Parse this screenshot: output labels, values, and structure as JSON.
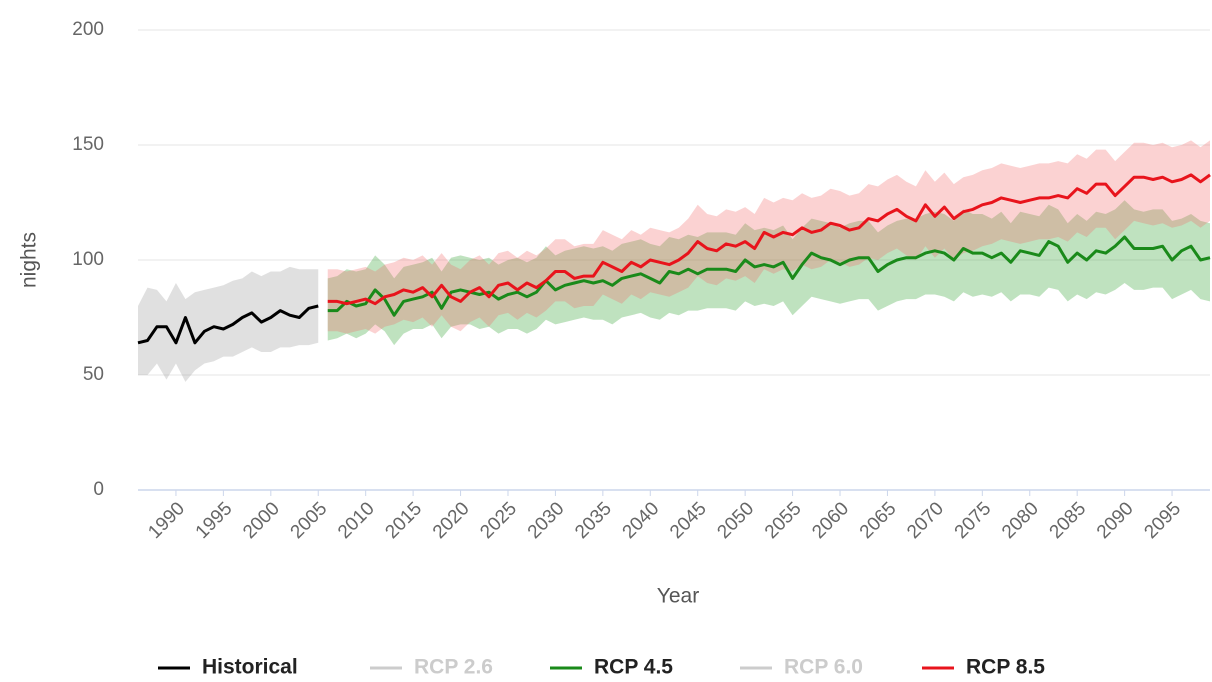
{
  "chart_data": {
    "type": "line",
    "y_label": "nights",
    "x_label": "Year",
    "xlim": [
      1986,
      2099
    ],
    "xticks": [
      1990,
      1995,
      2000,
      2005,
      2010,
      2015,
      2020,
      2025,
      2030,
      2035,
      2040,
      2045,
      2050,
      2055,
      2060,
      2065,
      2070,
      2075,
      2080,
      2085,
      2090,
      2095
    ],
    "ylim": [
      0,
      200
    ],
    "yticks": [
      0,
      50,
      100,
      150,
      200
    ],
    "grid": true,
    "series": [
      {
        "name": "Historical",
        "color": "#000000",
        "band_color": "#999999",
        "visible": true,
        "x": [
          1986,
          1987,
          1988,
          1989,
          1990,
          1991,
          1992,
          1993,
          1994,
          1995,
          1996,
          1997,
          1998,
          1999,
          2000,
          2001,
          2002,
          2003,
          2004,
          2005
        ],
        "values": [
          64,
          65,
          71,
          71,
          64,
          75,
          64,
          69,
          71,
          70,
          72,
          75,
          77,
          73,
          75,
          78,
          76,
          75,
          79,
          80
        ],
        "lower": [
          50,
          50,
          55,
          48,
          55,
          47,
          52,
          55,
          56,
          58,
          58,
          60,
          62,
          60,
          60,
          62,
          62,
          63,
          63,
          64
        ],
        "upper": [
          80,
          88,
          87,
          82,
          90,
          83,
          86,
          87,
          88,
          89,
          91,
          92,
          95,
          93,
          95,
          95,
          97,
          96,
          96,
          96
        ]
      },
      {
        "name": "RCP 2.6",
        "color": "#cccccc",
        "visible": false
      },
      {
        "name": "RCP 4.5",
        "color": "#1a8a1a",
        "band_color": "#2ca02c",
        "visible": true,
        "x": [
          2006,
          2007,
          2008,
          2009,
          2010,
          2011,
          2012,
          2013,
          2014,
          2015,
          2016,
          2017,
          2018,
          2019,
          2020,
          2021,
          2022,
          2023,
          2024,
          2025,
          2026,
          2027,
          2028,
          2029,
          2030,
          2031,
          2032,
          2033,
          2034,
          2035,
          2036,
          2037,
          2038,
          2039,
          2040,
          2041,
          2042,
          2043,
          2044,
          2045,
          2046,
          2047,
          2048,
          2049,
          2050,
          2051,
          2052,
          2053,
          2054,
          2055,
          2056,
          2057,
          2058,
          2059,
          2060,
          2061,
          2062,
          2063,
          2064,
          2065,
          2066,
          2067,
          2068,
          2069,
          2070,
          2071,
          2072,
          2073,
          2074,
          2075,
          2076,
          2077,
          2078,
          2079,
          2080,
          2081,
          2082,
          2083,
          2084,
          2085,
          2086,
          2087,
          2088,
          2089,
          2090,
          2091,
          2092,
          2093,
          2094,
          2095,
          2096,
          2097,
          2098,
          2099
        ],
        "values": [
          78,
          78,
          82,
          80,
          81,
          87,
          83,
          76,
          82,
          83,
          84,
          86,
          79,
          86,
          87,
          86,
          85,
          86,
          83,
          85,
          86,
          84,
          86,
          91,
          87,
          89,
          90,
          91,
          90,
          91,
          89,
          92,
          93,
          94,
          92,
          90,
          95,
          94,
          96,
          94,
          96,
          96,
          96,
          95,
          100,
          97,
          98,
          97,
          99,
          92,
          98,
          103,
          101,
          100,
          98,
          100,
          101,
          101,
          95,
          98,
          100,
          101,
          101,
          103,
          104,
          103,
          100,
          105,
          103,
          103,
          101,
          103,
          99,
          104,
          103,
          102,
          108,
          106,
          99,
          103,
          100,
          104,
          103,
          106,
          110,
          105,
          105,
          105,
          106,
          100,
          104,
          106,
          100,
          101
        ],
        "lower": [
          65,
          66,
          68,
          66,
          68,
          72,
          69,
          63,
          68,
          70,
          70,
          72,
          66,
          71,
          72,
          72,
          70,
          71,
          68,
          70,
          70,
          68,
          70,
          74,
          72,
          73,
          74,
          75,
          74,
          74,
          72,
          75,
          76,
          77,
          75,
          74,
          77,
          76,
          78,
          78,
          79,
          79,
          79,
          78,
          82,
          80,
          81,
          80,
          82,
          76,
          80,
          84,
          83,
          82,
          81,
          82,
          83,
          83,
          78,
          80,
          82,
          83,
          83,
          85,
          85,
          84,
          82,
          86,
          84,
          85,
          84,
          86,
          82,
          85,
          85,
          84,
          88,
          87,
          82,
          85,
          83,
          86,
          85,
          87,
          90,
          87,
          87,
          88,
          88,
          83,
          85,
          87,
          83,
          82
        ],
        "upper": [
          92,
          93,
          96,
          95,
          96,
          102,
          98,
          92,
          97,
          98,
          99,
          101,
          95,
          101,
          102,
          101,
          100,
          101,
          98,
          100,
          101,
          99,
          101,
          106,
          102,
          104,
          105,
          106,
          105,
          106,
          104,
          107,
          108,
          109,
          107,
          106,
          110,
          109,
          111,
          110,
          112,
          112,
          112,
          111,
          116,
          113,
          114,
          113,
          115,
          109,
          114,
          118,
          117,
          116,
          114,
          116,
          117,
          117,
          112,
          115,
          117,
          118,
          118,
          120,
          121,
          120,
          117,
          122,
          120,
          120,
          118,
          121,
          116,
          121,
          120,
          119,
          124,
          122,
          116,
          120,
          117,
          121,
          120,
          122,
          126,
          122,
          121,
          122,
          122,
          117,
          118,
          120,
          117,
          116
        ]
      },
      {
        "name": "RCP 6.0",
        "color": "#cccccc",
        "visible": false
      },
      {
        "name": "RCP 8.5",
        "color": "#e8141c",
        "band_color": "#f26b6b",
        "visible": true,
        "x": [
          2006,
          2007,
          2008,
          2009,
          2010,
          2011,
          2012,
          2013,
          2014,
          2015,
          2016,
          2017,
          2018,
          2019,
          2020,
          2021,
          2022,
          2023,
          2024,
          2025,
          2026,
          2027,
          2028,
          2029,
          2030,
          2031,
          2032,
          2033,
          2034,
          2035,
          2036,
          2037,
          2038,
          2039,
          2040,
          2041,
          2042,
          2043,
          2044,
          2045,
          2046,
          2047,
          2048,
          2049,
          2050,
          2051,
          2052,
          2053,
          2054,
          2055,
          2056,
          2057,
          2058,
          2059,
          2060,
          2061,
          2062,
          2063,
          2064,
          2065,
          2066,
          2067,
          2068,
          2069,
          2070,
          2071,
          2072,
          2073,
          2074,
          2075,
          2076,
          2077,
          2078,
          2079,
          2080,
          2081,
          2082,
          2083,
          2084,
          2085,
          2086,
          2087,
          2088,
          2089,
          2090,
          2091,
          2092,
          2093,
          2094,
          2095,
          2096,
          2097,
          2098,
          2099
        ],
        "values": [
          82,
          82,
          81,
          82,
          83,
          81,
          84,
          85,
          87,
          86,
          88,
          84,
          89,
          84,
          82,
          86,
          88,
          84,
          89,
          90,
          87,
          90,
          88,
          91,
          95,
          95,
          92,
          93,
          93,
          99,
          97,
          95,
          99,
          97,
          100,
          99,
          98,
          100,
          103,
          108,
          105,
          104,
          107,
          106,
          108,
          105,
          112,
          110,
          112,
          111,
          114,
          112,
          113,
          116,
          115,
          113,
          114,
          118,
          117,
          120,
          122,
          119,
          117,
          124,
          119,
          123,
          118,
          121,
          122,
          124,
          125,
          127,
          126,
          125,
          126,
          127,
          127,
          128,
          127,
          131,
          129,
          133,
          133,
          128,
          132,
          136,
          136,
          135,
          136,
          134,
          135,
          137,
          134,
          137
        ],
        "lower": [
          69,
          69,
          68,
          69,
          70,
          68,
          71,
          72,
          74,
          73,
          75,
          71,
          76,
          71,
          69,
          73,
          75,
          71,
          76,
          77,
          74,
          77,
          75,
          78,
          82,
          82,
          79,
          80,
          80,
          85,
          83,
          81,
          85,
          83,
          86,
          85,
          84,
          86,
          88,
          93,
          90,
          89,
          92,
          91,
          93,
          90,
          96,
          94,
          96,
          95,
          98,
          96,
          97,
          100,
          99,
          97,
          98,
          101,
          100,
          103,
          105,
          102,
          100,
          106,
          101,
          105,
          100,
          103,
          104,
          106,
          107,
          109,
          108,
          107,
          108,
          109,
          109,
          110,
          108,
          112,
          110,
          114,
          114,
          109,
          113,
          117,
          116,
          115,
          116,
          114,
          115,
          117,
          114,
          117
        ],
        "upper": [
          96,
          96,
          95,
          96,
          97,
          95,
          98,
          99,
          101,
          100,
          102,
          98,
          103,
          98,
          96,
          100,
          102,
          98,
          103,
          104,
          101,
          104,
          102,
          105,
          109,
          109,
          106,
          107,
          107,
          113,
          111,
          109,
          113,
          111,
          114,
          113,
          112,
          114,
          118,
          124,
          120,
          119,
          122,
          121,
          123,
          120,
          127,
          125,
          127,
          126,
          129,
          127,
          128,
          131,
          130,
          128,
          129,
          133,
          132,
          135,
          137,
          134,
          132,
          139,
          134,
          138,
          133,
          136,
          137,
          139,
          140,
          142,
          141,
          140,
          141,
          142,
          142,
          143,
          142,
          146,
          144,
          148,
          148,
          143,
          147,
          151,
          151,
          150,
          151,
          149,
          150,
          152,
          149,
          152
        ]
      }
    ]
  }
}
